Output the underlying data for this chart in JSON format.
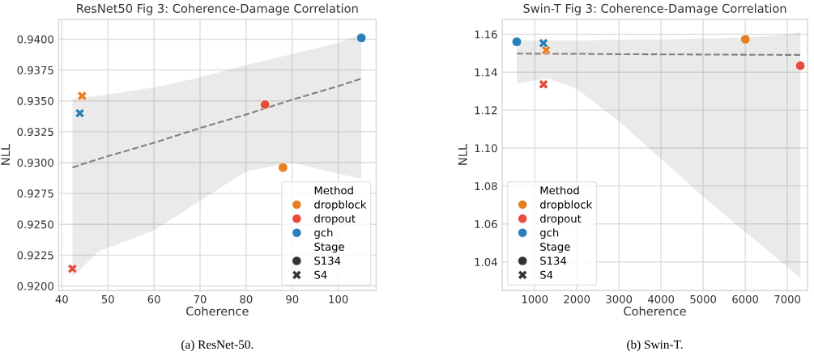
{
  "chart_data": [
    {
      "type": "scatter",
      "title": "ResNet50 Fig 3: Coherence-Damage Correlation",
      "xlabel": "Coherence",
      "ylabel": "NLL",
      "legend_title": [
        "Method",
        "Stage"
      ],
      "legend": "bottom right",
      "grid": true,
      "xlim": [
        39.3,
        108.2
      ],
      "ylim": [
        0.91963,
        0.9416
      ],
      "xticks": [
        40,
        50,
        60,
        70,
        80,
        90,
        100
      ],
      "yticks": [
        {
          "value": 0.92,
          "label": "0.9200"
        },
        {
          "value": 0.9225,
          "label": "0.9225"
        },
        {
          "value": 0.925,
          "label": "0.9250"
        },
        {
          "value": 0.9275,
          "label": "0.9275"
        },
        {
          "value": 0.93,
          "label": "0.9300"
        },
        {
          "value": 0.9325,
          "label": "0.9325"
        },
        {
          "value": 0.935,
          "label": "0.9350"
        },
        {
          "value": 0.9375,
          "label": "0.9375"
        },
        {
          "value": 0.94,
          "label": "0.9400"
        }
      ],
      "series": [
        {
          "type": "line",
          "color": "#808080",
          "line_style": "dashed",
          "x": [
            42.3,
            48,
            60,
            70,
            80,
            90,
            100,
            105
          ],
          "values": [
            0.9296,
            0.9303,
            0.9316,
            0.9328,
            0.9339,
            0.9351,
            0.9362,
            0.9368
          ],
          "lower": [
            0.9207,
            0.9228,
            0.9245,
            0.9269,
            0.9293,
            0.93,
            0.9291,
            0.9287
          ],
          "upper": [
            0.9352,
            0.9354,
            0.9361,
            0.9369,
            0.9379,
            0.9388,
            0.9397,
            0.9404
          ]
        },
        {
          "name": "dropblock",
          "color": "#e67e22",
          "marker": "circle",
          "x": [
            88.0
          ],
          "values": [
            0.9296
          ]
        },
        {
          "name": "dropout",
          "color": "#e74c3c",
          "marker": "circle",
          "x": [
            84.1
          ],
          "values": [
            0.9347
          ]
        },
        {
          "name": "gch",
          "color": "#2980b9",
          "marker": "circle",
          "x": [
            105.0
          ],
          "values": [
            0.9401
          ]
        },
        {
          "color": "#e67e22",
          "marker": "cross",
          "x": [
            44.4
          ],
          "values": [
            0.9354
          ]
        },
        {
          "color": "#e74c3c",
          "marker": "cross",
          "x": [
            42.3
          ],
          "values": [
            0.9214
          ]
        },
        {
          "color": "#2980b9",
          "marker": "cross",
          "x": [
            43.9
          ],
          "values": [
            0.934
          ]
        },
        {
          "name": "S134",
          "color": "#333333",
          "marker": "circle"
        },
        {
          "name": "S4",
          "color": "#333333",
          "marker": "cross"
        }
      ],
      "annotations": [
        "(a) ResNet-50."
      ]
    },
    {
      "type": "scatter",
      "title": "Swin-T Fig 3: Coherence-Damage Correlation",
      "xlabel": "Coherence",
      "ylabel": "NLL",
      "legend_title": [
        "Method",
        "Stage"
      ],
      "legend": "bottom left",
      "grid": true,
      "xlim": [
        228,
        7478
      ],
      "ylim": [
        1.0249,
        1.1678
      ],
      "xticks": [
        1000,
        2000,
        3000,
        4000,
        5000,
        6000,
        7000
      ],
      "yticks": [
        1.04,
        1.06,
        1.08,
        {
          "value": 1.1,
          "label": "1.10"
        },
        1.12,
        1.14,
        1.16
      ],
      "series": [
        {
          "type": "line",
          "color": "#808080",
          "line_style": "dashed",
          "x": [
            573,
            1300,
            2000,
            3000,
            4000,
            5000,
            6000,
            7000,
            7307
          ],
          "values": [
            1.1498,
            1.1497,
            1.1497,
            1.1495,
            1.1494,
            1.1493,
            1.1492,
            1.1491,
            1.1491
          ],
          "lower": [
            1.134,
            1.1368,
            1.1311,
            1.1141,
            1.0942,
            1.0743,
            1.0558,
            1.0373,
            1.0316
          ],
          "upper": [
            1.1567,
            1.1567,
            1.1567,
            1.157,
            1.1573,
            1.1577,
            1.1582,
            1.1599,
            1.1609
          ]
        },
        {
          "name": "dropblock",
          "color": "#e67e22",
          "marker": "circle",
          "x": [
            6002
          ],
          "values": [
            1.1573
          ]
        },
        {
          "name": "dropout",
          "color": "#e74c3c",
          "marker": "circle",
          "x": [
            7307
          ],
          "values": [
            1.1434
          ]
        },
        {
          "name": "gch",
          "color": "#2980b9",
          "marker": "circle",
          "x": [
            573
          ],
          "values": [
            1.156
          ]
        },
        {
          "color": "#e67e22",
          "marker": "cross",
          "x": [
            1270
          ],
          "values": [
            1.1516
          ]
        },
        {
          "color": "#e74c3c",
          "marker": "cross",
          "x": [
            1207
          ],
          "values": [
            1.1336
          ]
        },
        {
          "color": "#2980b9",
          "marker": "cross",
          "x": [
            1207
          ],
          "values": [
            1.1553
          ]
        },
        {
          "name": "S134",
          "color": "#333333",
          "marker": "circle"
        },
        {
          "name": "S4",
          "color": "#333333",
          "marker": "cross"
        }
      ],
      "annotations": [
        "(b) Swin-T."
      ]
    }
  ]
}
